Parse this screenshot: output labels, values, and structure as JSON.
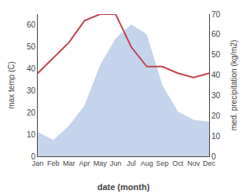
{
  "chart_data": {
    "type": "line",
    "xlabel": "date (month)",
    "ylabel": "max temp (C)",
    "y2label": "med. precipitation (kg/m2)",
    "categories": [
      "Jan",
      "Feb",
      "Mar",
      "Apr",
      "May",
      "Jun",
      "Jul",
      "Aug",
      "Sep",
      "Oct",
      "Nov",
      "Dec"
    ],
    "series": [
      {
        "type": "area",
        "axis": "y2",
        "color": "#c5d4ed",
        "values": [
          12,
          8,
          15,
          25,
          45,
          58,
          65,
          60,
          35,
          22,
          18,
          17
        ]
      },
      {
        "type": "line",
        "color": "#c0444a",
        "values": [
          38,
          45,
          52,
          62,
          65,
          65,
          50,
          41,
          41,
          38,
          36,
          38
        ]
      }
    ],
    "ylim": [
      0,
      65
    ],
    "yticks": [
      0,
      10,
      20,
      30,
      40,
      50,
      60
    ],
    "y2lim": [
      0,
      70
    ],
    "y2ticks": [
      0,
      10,
      20,
      30,
      40,
      50,
      60,
      70
    ],
    "grid": false
  }
}
